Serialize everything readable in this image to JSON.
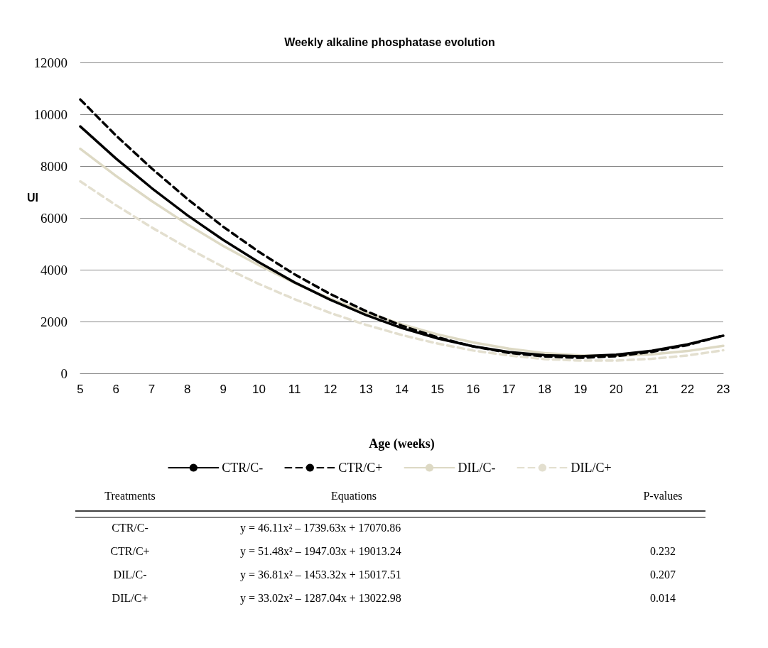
{
  "chart_data": {
    "type": "line",
    "title": "Weekly alkaline phosphatase evolution",
    "xlabel": "Age (weeks)",
    "ylabel": "UI",
    "x": [
      5,
      6,
      7,
      8,
      9,
      10,
      11,
      12,
      13,
      14,
      15,
      16,
      17,
      18,
      19,
      20,
      21,
      22,
      23
    ],
    "xlim": [
      5,
      23
    ],
    "xticks": [
      5,
      6,
      7,
      8,
      9,
      10,
      11,
      12,
      13,
      14,
      15,
      16,
      17,
      18,
      19,
      20,
      21,
      22,
      23
    ],
    "ylim": [
      0,
      12000
    ],
    "yticks": [
      0,
      2000,
      4000,
      6000,
      8000,
      10000,
      12000
    ],
    "grid": "y",
    "legend": "bottom",
    "marker": "none",
    "series": [
      {
        "name": "CTR/C-",
        "color": "#000000",
        "line_style": "solid",
        "values": [
          9530,
          8290,
          7150,
          6100,
          5150,
          4290,
          3510,
          2840,
          2250,
          1750,
          1350,
          1040,
          820,
          700,
          660,
          720,
          870,
          1120,
          1450
        ]
      },
      {
        "name": "CTR/C+",
        "color": "#000000",
        "line_style": "dashed",
        "values": [
          10570,
          9180,
          7910,
          6730,
          5660,
          4690,
          3820,
          3060,
          2400,
          1840,
          1390,
          1040,
          790,
          650,
          600,
          660,
          830,
          1090,
          1460
        ]
      },
      {
        "name": "DIL/C-",
        "color": "#ddd9c4",
        "line_style": "solid",
        "values": [
          8670,
          7620,
          6650,
          5750,
          4920,
          4170,
          3490,
          2880,
          2350,
          1890,
          1500,
          1190,
          950,
          780,
          690,
          680,
          730,
          860,
          1060
        ]
      },
      {
        "name": "DIL/C+",
        "color": "#e3dfcf",
        "line_style": "dashed",
        "values": [
          7410,
          6490,
          5630,
          4840,
          4110,
          3450,
          2860,
          2330,
          1870,
          1480,
          1150,
          880,
          690,
          550,
          490,
          490,
          560,
          690,
          890
        ]
      }
    ],
    "annotations": [
      "Treatments",
      "Equations",
      "P-values",
      "y = 46.11x² – 1739.63x + 17070.86",
      "y = 51.48x² – 1947.03x + 19013.24",
      "y = 36.81x² – 1453.32x + 15017.51",
      "y = 33.02x² – 1287.04x + 13022.98",
      "0.232",
      "0.207",
      "0.014"
    ]
  }
}
